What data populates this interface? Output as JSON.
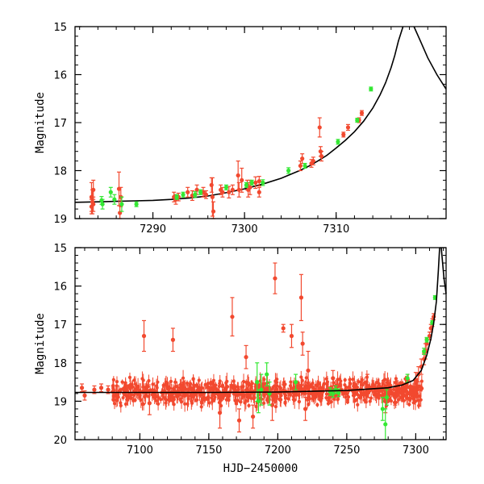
{
  "chart_data": [
    {
      "id": "top",
      "type": "scatter",
      "ylabel": "Magnitude",
      "xlabel": "",
      "xlim": [
        7281.5,
        7322
      ],
      "ylim": [
        19,
        15
      ],
      "x_ticks": [
        7290,
        7300,
        7310
      ],
      "x_tick_labels": [
        "7290",
        "7300",
        "7310"
      ],
      "y_ticks": [
        15,
        16,
        17,
        18,
        19
      ],
      "y_tick_labels": [
        "15",
        "16",
        "17",
        "18",
        "19"
      ],
      "colors": {
        "series_red": "#f2492f",
        "series_green": "#33e833",
        "model": "#000000"
      },
      "model": {
        "name": "microlensing model",
        "x": [
          7281.5,
          7284,
          7286,
          7288,
          7290,
          7292,
          7294,
          7296,
          7298,
          7300,
          7302,
          7304,
          7306,
          7307,
          7308,
          7309,
          7310,
          7311,
          7312,
          7313,
          7314,
          7314.8,
          7315.4,
          7316,
          7316.4,
          7316.8,
          7317.3
        ],
        "y": [
          18.66,
          18.65,
          18.64,
          18.63,
          18.62,
          18.6,
          18.57,
          18.53,
          18.46,
          18.38,
          18.28,
          18.16,
          18.0,
          17.91,
          17.8,
          17.68,
          17.53,
          17.37,
          17.19,
          16.97,
          16.7,
          16.42,
          16.17,
          15.85,
          15.6,
          15.3,
          15.0
        ],
        "x2": [
          7318.5,
          7319.2,
          7320,
          7321,
          7322
        ],
        "y2": [
          15.0,
          15.3,
          15.65,
          16.0,
          16.3
        ]
      },
      "series": [
        {
          "name": "red",
          "color": "#f2492f",
          "points": [
            {
              "x": 7283.3,
              "y": 18.55,
              "err": 0.3
            },
            {
              "x": 7283.3,
              "y": 18.75,
              "err": 0.15
            },
            {
              "x": 7283.4,
              "y": 18.65,
              "err": 0.25
            },
            {
              "x": 7283.5,
              "y": 18.4,
              "err": 0.2
            },
            {
              "x": 7283.5,
              "y": 18.7,
              "err": 0.15
            },
            {
              "x": 7286.3,
              "y": 18.38,
              "err": 0.35
            },
            {
              "x": 7286.4,
              "y": 18.88,
              "err": 0.15
            },
            {
              "x": 7286.5,
              "y": 18.55,
              "err": 0.2
            },
            {
              "x": 7292.3,
              "y": 18.55,
              "err": 0.1
            },
            {
              "x": 7292.5,
              "y": 18.6,
              "err": 0.1
            },
            {
              "x": 7292.8,
              "y": 18.55,
              "err": 0.08
            },
            {
              "x": 7293.8,
              "y": 18.45,
              "err": 0.1
            },
            {
              "x": 7294.3,
              "y": 18.52,
              "err": 0.1
            },
            {
              "x": 7294.8,
              "y": 18.4,
              "err": 0.1
            },
            {
              "x": 7295.5,
              "y": 18.45,
              "err": 0.1
            },
            {
              "x": 7295.8,
              "y": 18.5,
              "err": 0.08
            },
            {
              "x": 7296.4,
              "y": 18.3,
              "err": 0.15
            },
            {
              "x": 7296.5,
              "y": 18.55,
              "err": 0.4
            },
            {
              "x": 7296.6,
              "y": 18.85,
              "err": 0.2
            },
            {
              "x": 7297.4,
              "y": 18.4,
              "err": 0.1
            },
            {
              "x": 7297.6,
              "y": 18.45,
              "err": 0.1
            },
            {
              "x": 7298.3,
              "y": 18.45,
              "err": 0.12
            },
            {
              "x": 7298.7,
              "y": 18.4,
              "err": 0.1
            },
            {
              "x": 7299.3,
              "y": 18.1,
              "err": 0.3
            },
            {
              "x": 7299.4,
              "y": 18.4,
              "err": 0.15
            },
            {
              "x": 7299.7,
              "y": 18.2,
              "err": 0.25
            },
            {
              "x": 7300.3,
              "y": 18.3,
              "err": 0.1
            },
            {
              "x": 7300.4,
              "y": 18.4,
              "err": 0.15
            },
            {
              "x": 7300.6,
              "y": 18.35,
              "err": 0.15
            },
            {
              "x": 7301.2,
              "y": 18.25,
              "err": 0.12
            },
            {
              "x": 7301.6,
              "y": 18.22,
              "err": 0.1
            },
            {
              "x": 7301.6,
              "y": 18.45,
              "err": 0.1
            },
            {
              "x": 7306.1,
              "y": 17.9,
              "err": 0.1
            },
            {
              "x": 7306.3,
              "y": 17.75,
              "err": 0.1
            },
            {
              "x": 7307.3,
              "y": 17.85,
              "err": 0.08
            },
            {
              "x": 7307.5,
              "y": 17.8,
              "err": 0.08
            },
            {
              "x": 7308.2,
              "y": 17.1,
              "err": 0.2
            },
            {
              "x": 7308.3,
              "y": 17.6,
              "err": 0.1
            },
            {
              "x": 7308.4,
              "y": 17.7,
              "err": 0.1
            },
            {
              "x": 7310.8,
              "y": 17.25,
              "err": 0.05
            },
            {
              "x": 7311.3,
              "y": 17.1,
              "err": 0.06
            },
            {
              "x": 7312.5,
              "y": 16.95,
              "err": 0.05
            },
            {
              "x": 7312.8,
              "y": 16.8,
              "err": 0.05
            }
          ]
        },
        {
          "name": "green",
          "color": "#33e833",
          "points": [
            {
              "x": 7284.4,
              "y": 18.62,
              "err": 0.08
            },
            {
              "x": 7284.5,
              "y": 18.7,
              "err": 0.1
            },
            {
              "x": 7285.4,
              "y": 18.45,
              "err": 0.1
            },
            {
              "x": 7285.8,
              "y": 18.6,
              "err": 0.1
            },
            {
              "x": 7286.6,
              "y": 18.7,
              "err": 0.15
            },
            {
              "x": 7288.2,
              "y": 18.7,
              "err": 0.05
            },
            {
              "x": 7292.6,
              "y": 18.55,
              "err": 0.05
            },
            {
              "x": 7293.3,
              "y": 18.5,
              "err": 0.05
            },
            {
              "x": 7294.6,
              "y": 18.5,
              "err": 0.06
            },
            {
              "x": 7295.2,
              "y": 18.45,
              "err": 0.05
            },
            {
              "x": 7298.0,
              "y": 18.35,
              "err": 0.05
            },
            {
              "x": 7300.2,
              "y": 18.3,
              "err": 0.05
            },
            {
              "x": 7300.8,
              "y": 18.25,
              "err": 0.05
            },
            {
              "x": 7302.0,
              "y": 18.25,
              "err": 0.06
            },
            {
              "x": 7304.8,
              "y": 18.0,
              "err": 0.06
            },
            {
              "x": 7306.6,
              "y": 17.9,
              "err": 0.05
            },
            {
              "x": 7310.2,
              "y": 17.4,
              "err": 0.05
            },
            {
              "x": 7312.3,
              "y": 16.95,
              "err": 0.04
            },
            {
              "x": 7313.8,
              "y": 16.3,
              "err": 0.04
            }
          ]
        }
      ]
    },
    {
      "id": "bottom",
      "type": "scatter",
      "ylabel": "Magnitude",
      "xlabel": "HJD−2450000",
      "xlim": [
        7053,
        7322
      ],
      "ylim": [
        20,
        15
      ],
      "x_ticks": [
        7100,
        7150,
        7200,
        7250,
        7300
      ],
      "x_tick_labels": [
        "7100",
        "7150",
        "7200",
        "7250",
        "7300"
      ],
      "y_ticks": [
        15,
        16,
        17,
        18,
        19,
        20
      ],
      "y_tick_labels": [
        "15",
        "16",
        "17",
        "18",
        "19",
        "20"
      ],
      "colors": {
        "series_red": "#f2492f",
        "series_green": "#33e833",
        "model": "#000000"
      },
      "model": {
        "name": "microlensing model",
        "x": [
          7053,
          7100,
          7150,
          7200,
          7250,
          7280,
          7290,
          7298,
          7304,
          7308,
          7311,
          7313,
          7315,
          7316.4,
          7317.3
        ],
        "y": [
          18.77,
          18.77,
          18.77,
          18.76,
          18.72,
          18.65,
          18.58,
          18.46,
          18.2,
          17.8,
          17.37,
          16.97,
          16.4,
          15.6,
          15.0
        ],
        "x2": [
          7318.5,
          7319.5,
          7320.5,
          7322
        ],
        "y2": [
          15.0,
          15.4,
          15.8,
          16.2
        ]
      },
      "noise": {
        "x_start": 7080,
        "x_end": 7305,
        "mean": 18.75,
        "spread": 0.25
      },
      "series": [
        {
          "name": "red",
          "color": "#f2492f",
          "points": [
            {
              "x": 7058,
              "y": 18.65,
              "err": 0.1
            },
            {
              "x": 7060,
              "y": 18.85,
              "err": 0.12
            },
            {
              "x": 7067,
              "y": 18.7,
              "err": 0.1
            },
            {
              "x": 7072,
              "y": 18.65,
              "err": 0.1
            },
            {
              "x": 7077,
              "y": 18.7,
              "err": 0.1
            },
            {
              "x": 7103,
              "y": 17.3,
              "err": 0.4
            },
            {
              "x": 7124,
              "y": 17.4,
              "err": 0.3
            },
            {
              "x": 7107,
              "y": 19.05,
              "err": 0.3
            },
            {
              "x": 7167,
              "y": 16.8,
              "err": 0.5
            },
            {
              "x": 7172,
              "y": 19.5,
              "err": 0.3
            },
            {
              "x": 7177,
              "y": 17.85,
              "err": 0.3
            },
            {
              "x": 7198,
              "y": 15.8,
              "err": 0.4
            },
            {
              "x": 7204,
              "y": 17.1,
              "err": 0.1
            },
            {
              "x": 7210,
              "y": 17.3,
              "err": 0.3
            },
            {
              "x": 7217,
              "y": 16.3,
              "err": 0.6
            },
            {
              "x": 7218,
              "y": 17.5,
              "err": 0.3
            },
            {
              "x": 7220,
              "y": 19.2,
              "err": 0.3
            },
            {
              "x": 7222,
              "y": 18.2,
              "err": 0.5
            },
            {
              "x": 7196,
              "y": 19.1,
              "err": 0.4
            },
            {
              "x": 7158,
              "y": 19.3,
              "err": 0.4
            },
            {
              "x": 7182,
              "y": 19.4,
              "err": 0.3
            },
            {
              "x": 7240,
              "y": 18.4,
              "err": 0.2
            },
            {
              "x": 7265,
              "y": 18.6,
              "err": 0.3
            },
            {
              "x": 7278,
              "y": 19.0,
              "err": 0.3
            },
            {
              "x": 7285,
              "y": 18.9,
              "err": 0.2
            },
            {
              "x": 7300,
              "y": 18.45,
              "err": 0.2
            },
            {
              "x": 7302,
              "y": 18.3,
              "err": 0.2
            },
            {
              "x": 7304,
              "y": 18.1,
              "err": 0.2
            },
            {
              "x": 7306,
              "y": 17.9,
              "err": 0.15
            },
            {
              "x": 7307,
              "y": 17.7,
              "err": 0.2
            },
            {
              "x": 7308,
              "y": 17.5,
              "err": 0.15
            },
            {
              "x": 7310,
              "y": 17.3,
              "err": 0.1
            },
            {
              "x": 7311,
              "y": 17.1,
              "err": 0.1
            },
            {
              "x": 7312,
              "y": 16.95,
              "err": 0.1
            },
            {
              "x": 7313,
              "y": 16.8,
              "err": 0.08
            }
          ]
        },
        {
          "name": "green",
          "color": "#33e833",
          "points": [
            {
              "x": 7185,
              "y": 18.5,
              "err": 0.5
            },
            {
              "x": 7186,
              "y": 19.0,
              "err": 0.3
            },
            {
              "x": 7188,
              "y": 18.7,
              "err": 0.4
            },
            {
              "x": 7192,
              "y": 18.3,
              "err": 0.3
            },
            {
              "x": 7194,
              "y": 18.8,
              "err": 0.3
            },
            {
              "x": 7213,
              "y": 18.5,
              "err": 0.2
            },
            {
              "x": 7238,
              "y": 18.75,
              "err": 0.1
            },
            {
              "x": 7240,
              "y": 18.8,
              "err": 0.1
            },
            {
              "x": 7242,
              "y": 18.7,
              "err": 0.1
            },
            {
              "x": 7244,
              "y": 18.78,
              "err": 0.1
            },
            {
              "x": 7276,
              "y": 19.2,
              "err": 0.3
            },
            {
              "x": 7278,
              "y": 19.6,
              "err": 0.4
            },
            {
              "x": 7279,
              "y": 18.9,
              "err": 0.2
            },
            {
              "x": 7294,
              "y": 18.4,
              "err": 0.1
            },
            {
              "x": 7306,
              "y": 17.7,
              "err": 0.08
            },
            {
              "x": 7308,
              "y": 17.4,
              "err": 0.06
            },
            {
              "x": 7312,
              "y": 16.95,
              "err": 0.05
            },
            {
              "x": 7314,
              "y": 16.3,
              "err": 0.05
            }
          ]
        }
      ]
    }
  ]
}
